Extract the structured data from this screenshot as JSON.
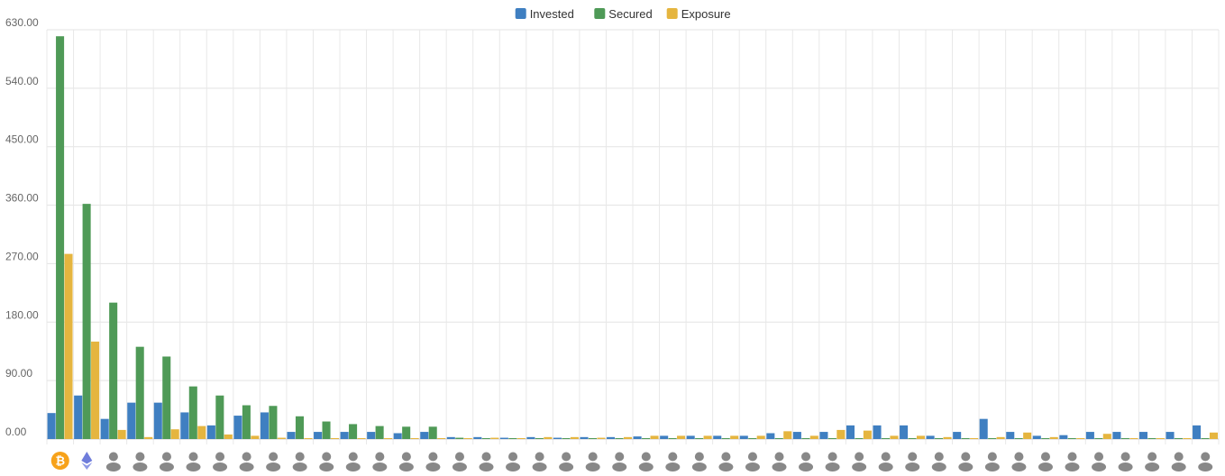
{
  "chart_data": {
    "type": "bar",
    "ylim": [
      0,
      630
    ],
    "ytick_labels": [
      "0.00",
      "90.00",
      "180.00",
      "270.00",
      "360.00",
      "450.00",
      "540.00",
      "630.00"
    ],
    "ytick_values": [
      0,
      90,
      180,
      270,
      360,
      450,
      540,
      630
    ],
    "grid": true,
    "legend_position": "top-center",
    "categories": [
      "bitcoin-icon",
      "ethereum-icon",
      "user-icon",
      "user-icon",
      "user-icon",
      "user-icon",
      "user-icon",
      "user-icon",
      "user-icon",
      "user-icon",
      "user-icon",
      "user-icon",
      "user-icon",
      "user-icon",
      "user-icon",
      "user-icon",
      "user-icon",
      "user-icon",
      "user-icon",
      "user-icon",
      "user-icon",
      "user-icon",
      "user-icon",
      "user-icon",
      "user-icon",
      "user-icon",
      "user-icon",
      "user-icon",
      "user-icon",
      "user-icon",
      "user-icon",
      "user-icon",
      "user-icon",
      "user-icon",
      "user-icon",
      "user-icon",
      "user-icon",
      "user-icon",
      "user-icon",
      "user-icon",
      "user-icon",
      "user-icon",
      "user-icon",
      "user-icon"
    ],
    "series": [
      {
        "name": "Invested",
        "color": "#3f7fc1",
        "values": [
          40,
          67,
          31,
          56,
          56,
          41,
          21,
          36,
          41,
          11,
          11,
          11,
          11,
          9,
          11,
          3,
          3,
          2,
          3,
          2,
          3,
          3,
          4,
          5,
          5,
          5,
          5,
          9,
          11,
          11,
          21,
          21,
          21,
          5,
          11,
          31,
          11,
          5,
          6,
          11,
          11,
          11,
          11,
          21
        ]
      },
      {
        "name": "Secured",
        "color": "#4f9a57",
        "values": [
          620,
          362,
          210,
          142,
          127,
          81,
          67,
          52,
          51,
          35,
          27,
          23,
          20,
          19,
          19,
          2,
          0,
          0,
          0,
          0,
          0,
          0,
          0,
          0,
          0,
          0,
          0,
          0,
          0,
          0,
          0,
          0,
          0,
          0,
          0,
          0,
          0,
          0,
          0,
          0,
          0,
          0,
          0,
          0
        ]
      },
      {
        "name": "Exposure",
        "color": "#e5b53f",
        "values": [
          285,
          150,
          14,
          3,
          15,
          20,
          7,
          5,
          2,
          0,
          0,
          0,
          0,
          0,
          0,
          0,
          2,
          1,
          3,
          3,
          2,
          3,
          5,
          5,
          5,
          5,
          5,
          12,
          5,
          14,
          13,
          5,
          5,
          3,
          0,
          3,
          10,
          3,
          0,
          8,
          0,
          0,
          0,
          10
        ]
      }
    ]
  }
}
